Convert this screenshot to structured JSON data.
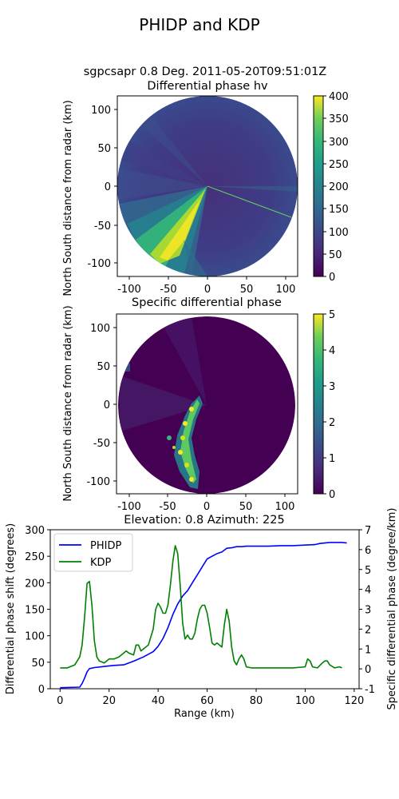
{
  "figure": {
    "suptitle": "PHIDP and KDP"
  },
  "ppi_panel_1": {
    "title_line1": "sgpcsapr 0.8 Deg. 2011-05-20T09:51:01Z",
    "title_line2": "Differential phase hv",
    "ylabel": "North South distance from radar (km)",
    "xticks": [
      "-100",
      "-50",
      "0",
      "50",
      "100"
    ],
    "yticks": [
      "100",
      "50",
      "0",
      "-50",
      "-100"
    ],
    "colorbar_ticks": [
      "400",
      "350",
      "300",
      "250",
      "200",
      "150",
      "100",
      "50",
      "0"
    ],
    "colormap": "viridis"
  },
  "ppi_panel_2": {
    "title": "Specific differential phase",
    "ylabel": "North South distance from radar (km)",
    "xticks": [
      "-100",
      "-50",
      "0",
      "50",
      "100"
    ],
    "yticks": [
      "100",
      "50",
      "0",
      "-50",
      "-100"
    ],
    "colorbar_ticks": [
      "5",
      "4",
      "3",
      "2",
      "1",
      "0"
    ],
    "colormap": "viridis"
  },
  "chart_data": {
    "type": "line",
    "title": "Elevation: 0.8 Azimuth: 225",
    "xlabel": "Range (km)",
    "ylabel_left": "Differential phase shift (degrees)",
    "ylabel_right": "Specific differential phase (degree/km)",
    "xlim": [
      -4,
      122
    ],
    "ylim_left": [
      0,
      300
    ],
    "ylim_right": [
      -1,
      7
    ],
    "xticks": [
      "0",
      "20",
      "40",
      "60",
      "80",
      "100",
      "120"
    ],
    "yticks_left": [
      "0",
      "50",
      "100",
      "150",
      "200",
      "250",
      "300"
    ],
    "yticks_right": [
      "-1",
      "0",
      "1",
      "2",
      "3",
      "4",
      "5",
      "6",
      "7"
    ],
    "legend_position": "upper-left",
    "series": [
      {
        "name": "PHIDP",
        "axis": "left",
        "color": "#0000ff",
        "points": [
          [
            0,
            2
          ],
          [
            8,
            3
          ],
          [
            9,
            10
          ],
          [
            10,
            20
          ],
          [
            11,
            32
          ],
          [
            12,
            38
          ],
          [
            14,
            40
          ],
          [
            18,
            42
          ],
          [
            22,
            44
          ],
          [
            26,
            45
          ],
          [
            30,
            52
          ],
          [
            34,
            60
          ],
          [
            38,
            70
          ],
          [
            40,
            80
          ],
          [
            42,
            95
          ],
          [
            44,
            115
          ],
          [
            46,
            140
          ],
          [
            48,
            160
          ],
          [
            50,
            175
          ],
          [
            52,
            185
          ],
          [
            54,
            200
          ],
          [
            56,
            215
          ],
          [
            58,
            230
          ],
          [
            60,
            245
          ],
          [
            62,
            250
          ],
          [
            64,
            255
          ],
          [
            66,
            258
          ],
          [
            68,
            265
          ],
          [
            70,
            266
          ],
          [
            72,
            268
          ],
          [
            74,
            268
          ],
          [
            76,
            269
          ],
          [
            80,
            269
          ],
          [
            85,
            269
          ],
          [
            90,
            270
          ],
          [
            95,
            270
          ],
          [
            100,
            271
          ],
          [
            104,
            272
          ],
          [
            106,
            274
          ],
          [
            110,
            276
          ],
          [
            112,
            276
          ],
          [
            115,
            276
          ],
          [
            117,
            275
          ]
        ]
      },
      {
        "name": "KDP",
        "axis": "right",
        "color": "#008000",
        "points": [
          [
            0,
            0.05
          ],
          [
            3,
            0.05
          ],
          [
            6,
            0.2
          ],
          [
            8,
            0.6
          ],
          [
            9,
            1.2
          ],
          [
            10,
            2.6
          ],
          [
            11,
            4.3
          ],
          [
            12,
            4.4
          ],
          [
            13,
            3.2
          ],
          [
            14,
            1.4
          ],
          [
            15,
            0.6
          ],
          [
            16,
            0.4
          ],
          [
            18,
            0.3
          ],
          [
            20,
            0.5
          ],
          [
            22,
            0.5
          ],
          [
            24,
            0.6
          ],
          [
            26,
            0.8
          ],
          [
            27,
            0.9
          ],
          [
            28,
            0.8
          ],
          [
            30,
            0.7
          ],
          [
            31,
            1.2
          ],
          [
            32,
            1.2
          ],
          [
            33,
            0.9
          ],
          [
            34,
            1.0
          ],
          [
            36,
            1.2
          ],
          [
            38,
            2.0
          ],
          [
            39,
            3.0
          ],
          [
            40,
            3.3
          ],
          [
            41,
            3.1
          ],
          [
            42,
            2.8
          ],
          [
            43,
            2.8
          ],
          [
            44,
            3.2
          ],
          [
            45,
            4.2
          ],
          [
            46,
            5.4
          ],
          [
            47,
            6.2
          ],
          [
            48,
            5.8
          ],
          [
            49,
            4.2
          ],
          [
            50,
            2.3
          ],
          [
            51,
            1.5
          ],
          [
            52,
            1.7
          ],
          [
            53,
            1.5
          ],
          [
            54,
            1.5
          ],
          [
            55,
            1.8
          ],
          [
            56,
            2.5
          ],
          [
            57,
            3.0
          ],
          [
            58,
            3.2
          ],
          [
            59,
            3.2
          ],
          [
            60,
            2.8
          ],
          [
            61,
            2.1
          ],
          [
            62,
            1.3
          ],
          [
            63,
            1.2
          ],
          [
            64,
            1.3
          ],
          [
            65,
            1.2
          ],
          [
            66,
            1.1
          ],
          [
            67,
            2.2
          ],
          [
            68,
            3.0
          ],
          [
            69,
            2.4
          ],
          [
            70,
            1.1
          ],
          [
            71,
            0.4
          ],
          [
            72,
            0.2
          ],
          [
            73,
            0.5
          ],
          [
            74,
            0.7
          ],
          [
            75,
            0.5
          ],
          [
            76,
            0.1
          ],
          [
            78,
            0.05
          ],
          [
            85,
            0.05
          ],
          [
            95,
            0.05
          ],
          [
            100,
            0.1
          ],
          [
            101,
            0.5
          ],
          [
            102,
            0.4
          ],
          [
            103,
            0.1
          ],
          [
            105,
            0.05
          ],
          [
            107,
            0.3
          ],
          [
            108,
            0.4
          ],
          [
            109,
            0.4
          ],
          [
            110,
            0.2
          ],
          [
            112,
            0.05
          ],
          [
            114,
            0.1
          ],
          [
            115,
            0.05
          ]
        ]
      }
    ]
  }
}
